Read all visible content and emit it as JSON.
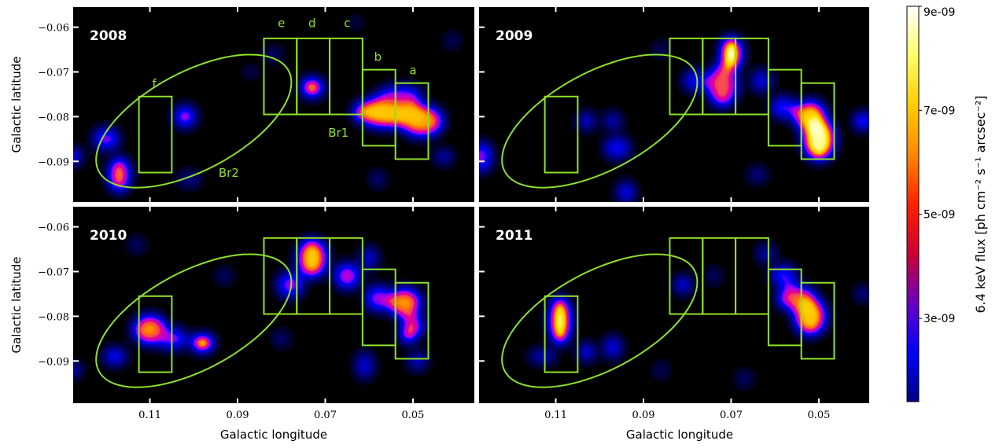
{
  "figure": {
    "panels": [
      {
        "year": "2008",
        "blobs": [
          [
            0.073,
            -0.0735,
            1.0,
            0.9,
            0.9
          ],
          [
            0.055,
            -0.079,
            3.5,
            1.5,
            0.85
          ],
          [
            0.048,
            -0.081,
            2.0,
            1.5,
            0.8
          ],
          [
            0.102,
            -0.08,
            1.0,
            1.0,
            0.65
          ],
          [
            0.12,
            -0.085,
            1.2,
            1.0,
            0.6
          ],
          [
            0.117,
            -0.093,
            1.0,
            1.6,
            0.8
          ],
          [
            0.128,
            -0.089,
            1.0,
            0.8,
            0.55
          ],
          [
            0.053,
            -0.075,
            2.0,
            0.8,
            0.6
          ],
          [
            0.101,
            -0.094,
            1.0,
            0.6,
            0.35
          ],
          [
            0.082,
            -0.066,
            0.8,
            0.5,
            0.3
          ],
          [
            0.058,
            -0.094,
            0.6,
            0.6,
            0.35
          ],
          [
            0.043,
            -0.089,
            0.8,
            0.6,
            0.45
          ],
          [
            0.087,
            -0.07,
            0.6,
            0.4,
            0.25
          ],
          [
            0.063,
            -0.059,
            0.5,
            0.4,
            0.25
          ],
          [
            0.041,
            -0.063,
            0.6,
            0.5,
            0.3
          ]
        ]
      },
      {
        "year": "2009",
        "blobs": [
          [
            0.07,
            -0.066,
            1.0,
            1.6,
            1.0
          ],
          [
            0.072,
            -0.073,
            1.4,
            2.0,
            0.75
          ],
          [
            0.078,
            -0.072,
            1.2,
            1.0,
            0.5
          ],
          [
            0.052,
            -0.08,
            1.5,
            1.5,
            0.85
          ],
          [
            0.05,
            -0.085,
            1.5,
            2.0,
            0.95
          ],
          [
            0.058,
            -0.078,
            1.2,
            1.0,
            0.55
          ],
          [
            0.063,
            -0.072,
            1.0,
            1.0,
            0.45
          ],
          [
            0.103,
            -0.081,
            0.8,
            0.8,
            0.45
          ],
          [
            0.097,
            -0.081,
            0.8,
            0.8,
            0.4
          ],
          [
            0.127,
            -0.089,
            1.0,
            1.4,
            0.6
          ],
          [
            0.096,
            -0.087,
            1.2,
            1.0,
            0.5
          ],
          [
            0.094,
            -0.097,
            0.8,
            1.0,
            0.5
          ],
          [
            0.04,
            -0.081,
            0.8,
            0.8,
            0.65
          ],
          [
            0.064,
            -0.093,
            0.8,
            0.6,
            0.35
          ],
          [
            0.086,
            -0.065,
            0.6,
            0.5,
            0.3
          ]
        ]
      },
      {
        "year": "2010",
        "blobs": [
          [
            0.073,
            -0.067,
            1.4,
            1.8,
            0.85
          ],
          [
            0.065,
            -0.071,
            1.2,
            1.2,
            0.65
          ],
          [
            0.078,
            -0.073,
            1.2,
            1.2,
            0.6
          ],
          [
            0.06,
            -0.067,
            0.8,
            1.0,
            0.45
          ],
          [
            0.058,
            -0.076,
            1.2,
            1.2,
            0.6
          ],
          [
            0.052,
            -0.077,
            1.6,
            1.4,
            0.8
          ],
          [
            0.05,
            -0.082,
            1.0,
            1.0,
            0.7
          ],
          [
            0.051,
            -0.084,
            0.8,
            0.8,
            0.8
          ],
          [
            0.098,
            -0.086,
            1.0,
            0.8,
            1.0
          ],
          [
            0.11,
            -0.083,
            1.6,
            1.4,
            0.8
          ],
          [
            0.105,
            -0.085,
            1.4,
            1.0,
            0.6
          ],
          [
            0.118,
            -0.089,
            1.0,
            0.8,
            0.55
          ],
          [
            0.128,
            -0.092,
            1.0,
            0.6,
            0.45
          ],
          [
            0.08,
            -0.085,
            0.6,
            0.6,
            0.35
          ],
          [
            0.061,
            -0.091,
            0.8,
            1.2,
            0.45
          ],
          [
            0.093,
            -0.071,
            0.6,
            0.6,
            0.3
          ],
          [
            0.113,
            -0.064,
            0.6,
            0.6,
            0.3
          ],
          [
            0.049,
            -0.09,
            0.8,
            0.8,
            0.45
          ]
        ]
      },
      {
        "year": "2011",
        "blobs": [
          [
            0.109,
            -0.081,
            1.0,
            2.2,
            0.95
          ],
          [
            0.103,
            -0.088,
            0.8,
            0.8,
            0.5
          ],
          [
            0.113,
            -0.089,
            1.2,
            0.6,
            0.45
          ],
          [
            0.097,
            -0.087,
            0.8,
            1.0,
            0.5
          ],
          [
            0.055,
            -0.076,
            1.8,
            1.2,
            0.75
          ],
          [
            0.052,
            -0.08,
            1.5,
            1.8,
            0.85
          ],
          [
            0.058,
            -0.071,
            1.2,
            1.0,
            0.55
          ],
          [
            0.062,
            -0.066,
            0.8,
            0.8,
            0.4
          ],
          [
            0.081,
            -0.073,
            0.8,
            0.8,
            0.5
          ],
          [
            0.04,
            -0.075,
            0.6,
            0.6,
            0.4
          ],
          [
            0.074,
            -0.071,
            0.6,
            0.6,
            0.3
          ],
          [
            0.067,
            -0.094,
            0.6,
            0.6,
            0.3
          ],
          [
            0.086,
            -0.092,
            0.6,
            0.6,
            0.25
          ]
        ]
      }
    ],
    "x_ticks": [
      "0.11",
      "0.09",
      "0.07",
      "0.05"
    ],
    "x_tick_values": [
      0.11,
      0.09,
      0.07,
      0.05
    ],
    "y_ticks": [
      "−0.06",
      "−0.07",
      "−0.08",
      "−0.09"
    ],
    "y_tick_values": [
      -0.06,
      -0.07,
      -0.08,
      -0.09
    ],
    "x_range": [
      0.1275,
      0.036
    ],
    "y_range": [
      -0.0555,
      -0.099
    ],
    "x_label": "Galactic longitude",
    "y_label": "Galactic latitude",
    "regions": {
      "boxes": [
        {
          "name": "e",
          "l": [
            0.084,
            0.0765
          ],
          "b": [
            -0.0625,
            -0.0795
          ]
        },
        {
          "name": "d",
          "l": [
            0.0765,
            0.069
          ],
          "b": [
            -0.0625,
            -0.0795
          ]
        },
        {
          "name": "c",
          "l": [
            0.069,
            0.0615
          ],
          "b": [
            -0.0625,
            -0.0795
          ]
        },
        {
          "name": "b",
          "l": [
            0.0615,
            0.054
          ],
          "b": [
            -0.0695,
            -0.0865
          ]
        },
        {
          "name": "a",
          "l": [
            0.054,
            0.0465
          ],
          "b": [
            -0.0725,
            -0.0895
          ]
        },
        {
          "name": "f",
          "l": [
            0.1125,
            0.105
          ],
          "b": [
            -0.0755,
            -0.0925
          ]
        }
      ],
      "ellipse": {
        "center": [
          0.1,
          -0.081
        ],
        "rx": 0.0245,
        "ry": 0.011,
        "angle": -28
      },
      "labels": [
        {
          "text": "e",
          "l": 0.08,
          "b": -0.06
        },
        {
          "text": "d",
          "l": 0.073,
          "b": -0.06
        },
        {
          "text": "c",
          "l": 0.065,
          "b": -0.06
        },
        {
          "text": "b",
          "l": 0.058,
          "b": -0.0675
        },
        {
          "text": "a",
          "l": 0.05,
          "b": -0.0705
        },
        {
          "text": "f",
          "l": 0.109,
          "b": -0.0735
        },
        {
          "text": "Br1",
          "l": 0.067,
          "b": -0.0845
        },
        {
          "text": "Br2",
          "l": 0.092,
          "b": -0.0935
        }
      ]
    },
    "colorbar": {
      "title": "6.4 keV flux [ph cm⁻² s⁻¹ arcsec⁻²]",
      "tick_labels": [
        "9e-09",
        "7e-09",
        "5e-09",
        "3e-09"
      ],
      "tick_values": [
        9e-09,
        7e-09,
        5e-09,
        3e-09
      ],
      "range": [
        1.4e-09,
        9e-09
      ],
      "colormap": [
        "#000080",
        "#0000ff",
        "#6a00c0",
        "#cc0033",
        "#ff2200",
        "#ff8800",
        "#ffcc00",
        "#ffff66",
        "#ffffff"
      ]
    }
  }
}
